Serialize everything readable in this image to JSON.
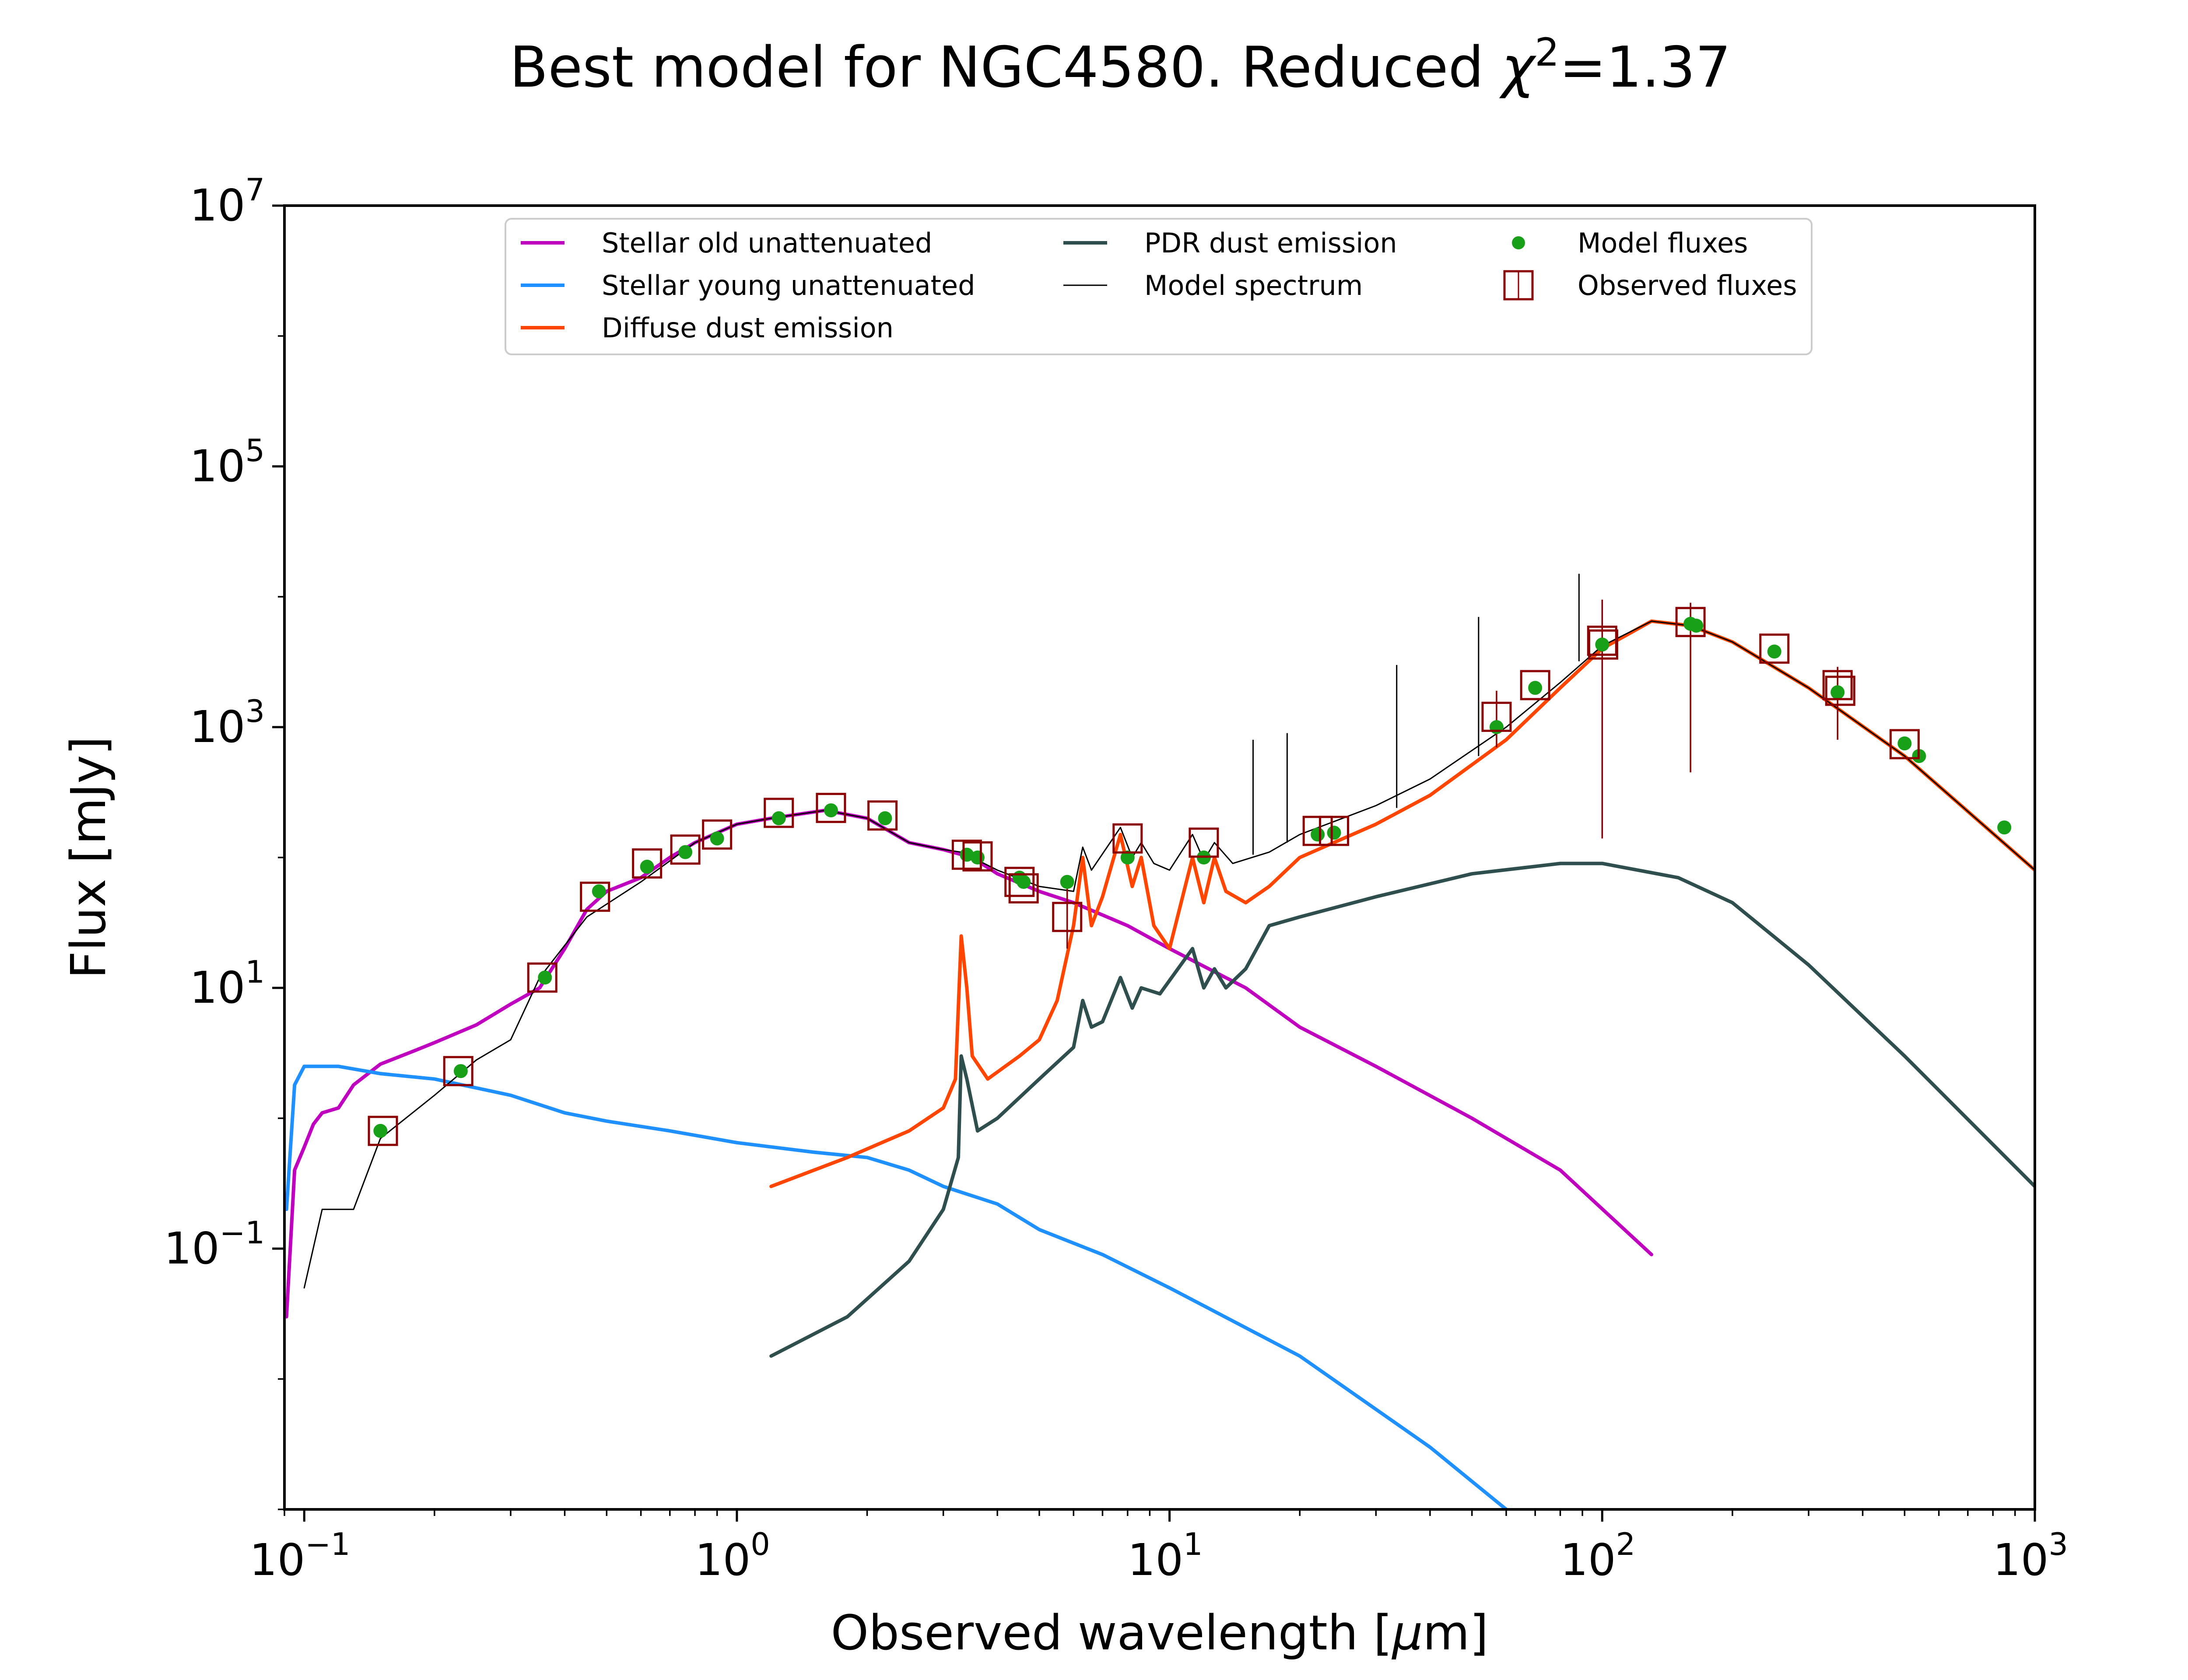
{
  "chart_data": {
    "type": "line",
    "title_text": "Best model for NGC4580. Reduced ",
    "title_symbol": "χ",
    "title_symbol_exp": "2",
    "title_value": "=1.37",
    "xlabel_text": "Observed wavelength [",
    "xlabel_unit_greek": "μ",
    "xlabel_unit_rest": "m]",
    "ylabel": "Flux [mJy]",
    "x_scale": "log",
    "y_scale": "log",
    "xlim": [
      0.09,
      1000
    ],
    "ylim": [
      0.001,
      10000000
    ],
    "x_ticks": [
      {
        "value": 0.1,
        "base": "10",
        "exp": "−1"
      },
      {
        "value": 1,
        "base": "10",
        "exp": "0"
      },
      {
        "value": 10,
        "base": "10",
        "exp": "1"
      },
      {
        "value": 100,
        "base": "10",
        "exp": "2"
      },
      {
        "value": 1000,
        "base": "10",
        "exp": "3"
      }
    ],
    "y_ticks": [
      {
        "value": 0.1,
        "base": "10",
        "exp": "−1"
      },
      {
        "value": 10,
        "base": "10",
        "exp": "1"
      },
      {
        "value": 1000,
        "base": "10",
        "exp": "3"
      },
      {
        "value": 100000,
        "base": "10",
        "exp": "5"
      },
      {
        "value": 10000000,
        "base": "10",
        "exp": "7"
      }
    ],
    "legend_position": "upper center",
    "legend": [
      {
        "label": "Stellar old unattenuated",
        "color": "#bf00bf",
        "marker": "line"
      },
      {
        "label": "Stellar young unattenuated",
        "color": "#1e90ff",
        "marker": "line"
      },
      {
        "label": "Diffuse dust emission",
        "color": "#ff4500",
        "marker": "line"
      },
      {
        "label": "PDR dust emission",
        "color": "#2f4f4f",
        "marker": "line"
      },
      {
        "label": "Model spectrum",
        "color": "#000000",
        "marker": "thin-line"
      },
      {
        "label": "Model fluxes",
        "color": "#18a018",
        "marker": "dot"
      },
      {
        "label": "Observed fluxes",
        "color": "#8b0000",
        "marker": "square"
      }
    ],
    "series": [
      {
        "name": "Stellar old unattenuated",
        "color": "#bf00bf",
        "points": [
          [
            0.091,
            0.03
          ],
          [
            0.095,
            0.4
          ],
          [
            0.1,
            0.6
          ],
          [
            0.105,
            0.9
          ],
          [
            0.11,
            1.1
          ],
          [
            0.12,
            1.2
          ],
          [
            0.13,
            1.8
          ],
          [
            0.15,
            2.6
          ],
          [
            0.18,
            3.3
          ],
          [
            0.2,
            3.8
          ],
          [
            0.25,
            5.2
          ],
          [
            0.3,
            7.5
          ],
          [
            0.35,
            10
          ],
          [
            0.4,
            20
          ],
          [
            0.45,
            40
          ],
          [
            0.5,
            55
          ],
          [
            0.6,
            70
          ],
          [
            0.7,
            100
          ],
          [
            0.8,
            130
          ],
          [
            1.0,
            180
          ],
          [
            1.2,
            200
          ],
          [
            1.6,
            230
          ],
          [
            2.0,
            200
          ],
          [
            2.5,
            130
          ],
          [
            3.0,
            115
          ],
          [
            3.5,
            100
          ],
          [
            4.0,
            75
          ],
          [
            5.0,
            55
          ],
          [
            6.0,
            45
          ],
          [
            8.0,
            30
          ],
          [
            10.0,
            20
          ],
          [
            15.0,
            10
          ],
          [
            20.0,
            5
          ],
          [
            30.0,
            2.5
          ],
          [
            50.0,
            1
          ],
          [
            80.0,
            0.4
          ],
          [
            130.0,
            0.09
          ]
        ]
      },
      {
        "name": "Stellar young unattenuated",
        "color": "#1e90ff",
        "points": [
          [
            0.091,
            0.2
          ],
          [
            0.095,
            1.8
          ],
          [
            0.1,
            2.5
          ],
          [
            0.12,
            2.5
          ],
          [
            0.15,
            2.2
          ],
          [
            0.2,
            2.0
          ],
          [
            0.3,
            1.5
          ],
          [
            0.4,
            1.1
          ],
          [
            0.5,
            0.95
          ],
          [
            0.7,
            0.8
          ],
          [
            1.0,
            0.65
          ],
          [
            1.5,
            0.55
          ],
          [
            2.0,
            0.5
          ],
          [
            2.5,
            0.4
          ],
          [
            3.0,
            0.3
          ],
          [
            4.0,
            0.22
          ],
          [
            5.0,
            0.14
          ],
          [
            7.0,
            0.09
          ],
          [
            10.0,
            0.05
          ],
          [
            20.0,
            0.015
          ],
          [
            40.0,
            0.003
          ],
          [
            60.0,
            0.001
          ]
        ]
      },
      {
        "name": "Diffuse dust emission",
        "color": "#ff4500",
        "points": [
          [
            1.2,
            0.3
          ],
          [
            1.8,
            0.5
          ],
          [
            2.5,
            0.8
          ],
          [
            3.0,
            1.2
          ],
          [
            3.2,
            2
          ],
          [
            3.3,
            25
          ],
          [
            3.4,
            10
          ],
          [
            3.5,
            3
          ],
          [
            3.8,
            2
          ],
          [
            4.5,
            3
          ],
          [
            5.0,
            4
          ],
          [
            5.5,
            8
          ],
          [
            6.0,
            30
          ],
          [
            6.3,
            100
          ],
          [
            6.6,
            30
          ],
          [
            7.0,
            50
          ],
          [
            7.7,
            150
          ],
          [
            8.2,
            60
          ],
          [
            8.6,
            100
          ],
          [
            9.2,
            30
          ],
          [
            10.0,
            20
          ],
          [
            11.3,
            100
          ],
          [
            12.0,
            45
          ],
          [
            12.7,
            100
          ],
          [
            13.5,
            55
          ],
          [
            15.0,
            45
          ],
          [
            17.0,
            60
          ],
          [
            20.0,
            100
          ],
          [
            30.0,
            180
          ],
          [
            40.0,
            300
          ],
          [
            60.0,
            800
          ],
          [
            80.0,
            2000
          ],
          [
            100.0,
            4000
          ],
          [
            130.0,
            6500
          ],
          [
            160.0,
            6000
          ],
          [
            200.0,
            4500
          ],
          [
            300.0,
            2000
          ],
          [
            500.0,
            600
          ],
          [
            1000.0,
            80
          ]
        ]
      },
      {
        "name": "PDR dust emission",
        "color": "#2f4f4f",
        "points": [
          [
            1.2,
            0.015
          ],
          [
            1.8,
            0.03
          ],
          [
            2.5,
            0.08
          ],
          [
            3.0,
            0.2
          ],
          [
            3.25,
            0.5
          ],
          [
            3.3,
            3
          ],
          [
            3.4,
            2
          ],
          [
            3.6,
            0.8
          ],
          [
            4.0,
            1
          ],
          [
            5.0,
            2
          ],
          [
            6.0,
            3.5
          ],
          [
            6.3,
            8
          ],
          [
            6.6,
            5
          ],
          [
            7.0,
            5.5
          ],
          [
            7.7,
            12
          ],
          [
            8.2,
            7
          ],
          [
            8.6,
            10
          ],
          [
            9.5,
            9
          ],
          [
            11.3,
            20
          ],
          [
            12.0,
            10
          ],
          [
            12.7,
            14
          ],
          [
            13.5,
            10
          ],
          [
            15.0,
            14
          ],
          [
            17.0,
            30
          ],
          [
            20.0,
            35
          ],
          [
            30.0,
            50
          ],
          [
            50.0,
            75
          ],
          [
            80.0,
            90
          ],
          [
            100.0,
            90
          ],
          [
            150.0,
            70
          ],
          [
            200.0,
            45
          ],
          [
            300.0,
            15
          ],
          [
            500.0,
            3
          ],
          [
            1000.0,
            0.3
          ]
        ]
      },
      {
        "name": "Model spectrum",
        "color": "#000000",
        "points": [
          [
            0.1,
            0.05
          ],
          [
            0.11,
            0.2
          ],
          [
            0.13,
            0.2
          ],
          [
            0.15,
            0.7
          ],
          [
            0.2,
            1.5
          ],
          [
            0.25,
            2.8
          ],
          [
            0.3,
            4
          ],
          [
            0.35,
            12
          ],
          [
            0.45,
            35
          ],
          [
            0.6,
            65
          ],
          [
            0.8,
            130
          ],
          [
            1.0,
            180
          ],
          [
            1.2,
            200
          ],
          [
            1.6,
            230
          ],
          [
            2.0,
            200
          ],
          [
            2.5,
            130
          ],
          [
            3.0,
            115
          ],
          [
            3.3,
            110
          ],
          [
            3.5,
            100
          ],
          [
            4.0,
            80
          ],
          [
            5.0,
            60
          ],
          [
            6.0,
            55
          ],
          [
            6.3,
            120
          ],
          [
            6.6,
            80
          ],
          [
            7.7,
            170
          ],
          [
            8.2,
            100
          ],
          [
            8.6,
            130
          ],
          [
            9.2,
            90
          ],
          [
            10.0,
            80
          ],
          [
            11.3,
            150
          ],
          [
            12.0,
            95
          ],
          [
            12.7,
            130
          ],
          [
            14.0,
            90
          ],
          [
            17.0,
            110
          ],
          [
            20.0,
            150
          ],
          [
            30.0,
            250
          ],
          [
            40.0,
            400
          ],
          [
            60.0,
            1000
          ],
          [
            80.0,
            2200
          ],
          [
            100.0,
            4200
          ],
          [
            130.0,
            6500
          ],
          [
            160.0,
            6000
          ],
          [
            200.0,
            4500
          ],
          [
            300.0,
            2000
          ],
          [
            500.0,
            600
          ],
          [
            1000.0,
            80
          ]
        ]
      }
    ],
    "emission_lines": [
      {
        "x": 15.6,
        "y_base": 105,
        "y_top": 800
      },
      {
        "x": 18.7,
        "y_base": 130,
        "y_top": 900
      },
      {
        "x": 33.5,
        "y_base": 240,
        "y_top": 3000
      },
      {
        "x": 51.8,
        "y_base": 600,
        "y_top": 7000
      },
      {
        "x": 88.4,
        "y_base": 3200,
        "y_top": 15000
      }
    ],
    "model_fluxes": [
      [
        0.15,
        0.8
      ],
      [
        0.23,
        2.3
      ],
      [
        0.36,
        12
      ],
      [
        0.48,
        55
      ],
      [
        0.62,
        85
      ],
      [
        0.76,
        110
      ],
      [
        0.9,
        140
      ],
      [
        1.25,
        200
      ],
      [
        1.65,
        230
      ],
      [
        2.2,
        200
      ],
      [
        3.4,
        105
      ],
      [
        3.6,
        100
      ],
      [
        4.5,
        70
      ],
      [
        4.6,
        65
      ],
      [
        5.8,
        65
      ],
      [
        8.0,
        100
      ],
      [
        12.0,
        100
      ],
      [
        22.0,
        150
      ],
      [
        24.0,
        155
      ],
      [
        57.0,
        1000
      ],
      [
        70.0,
        2000
      ],
      [
        100.0,
        4300
      ],
      [
        160.0,
        6200
      ],
      [
        165.0,
        6000
      ],
      [
        250.0,
        3800
      ],
      [
        350.0,
        1850
      ],
      [
        500.0,
        750
      ],
      [
        540.0,
        600
      ],
      [
        850.0,
        170
      ]
    ],
    "observed_fluxes": [
      {
        "x": 0.152,
        "y": 0.8
      },
      {
        "x": 0.227,
        "y": 2.3
      },
      {
        "x": 0.355,
        "y": 12
      },
      {
        "x": 0.47,
        "y": 50
      },
      {
        "x": 0.62,
        "y": 90
      },
      {
        "x": 0.76,
        "y": 115
      },
      {
        "x": 0.9,
        "y": 150
      },
      {
        "x": 1.25,
        "y": 220
      },
      {
        "x": 1.65,
        "y": 240
      },
      {
        "x": 2.17,
        "y": 210
      },
      {
        "x": 3.4,
        "y": 105
      },
      {
        "x": 3.6,
        "y": 102
      },
      {
        "x": 4.5,
        "y": 65
      },
      {
        "x": 4.6,
        "y": 58
      },
      {
        "x": 5.8,
        "y": 35,
        "err_low": 20,
        "err_high": 60
      },
      {
        "x": 8.0,
        "y": 140
      },
      {
        "x": 12.0,
        "y": 130
      },
      {
        "x": 22.0,
        "y": 160
      },
      {
        "x": 24.0,
        "y": 160
      },
      {
        "x": 57.0,
        "y": 1200,
        "err_low": 700,
        "err_high": 1900
      },
      {
        "x": 70.0,
        "y": 2100
      },
      {
        "x": 100.0,
        "y": 4600,
        "err_low": 140,
        "err_high": 9500
      },
      {
        "x": 100.5,
        "y": 4300
      },
      {
        "x": 160.0,
        "y": 6400,
        "err_low": 450,
        "err_high": 9000
      },
      {
        "x": 250.0,
        "y": 4000
      },
      {
        "x": 350.0,
        "y": 2100,
        "err_low": 800,
        "err_high": 2900
      },
      {
        "x": 355.0,
        "y": 1900
      },
      {
        "x": 500.0,
        "y": 740
      }
    ]
  }
}
